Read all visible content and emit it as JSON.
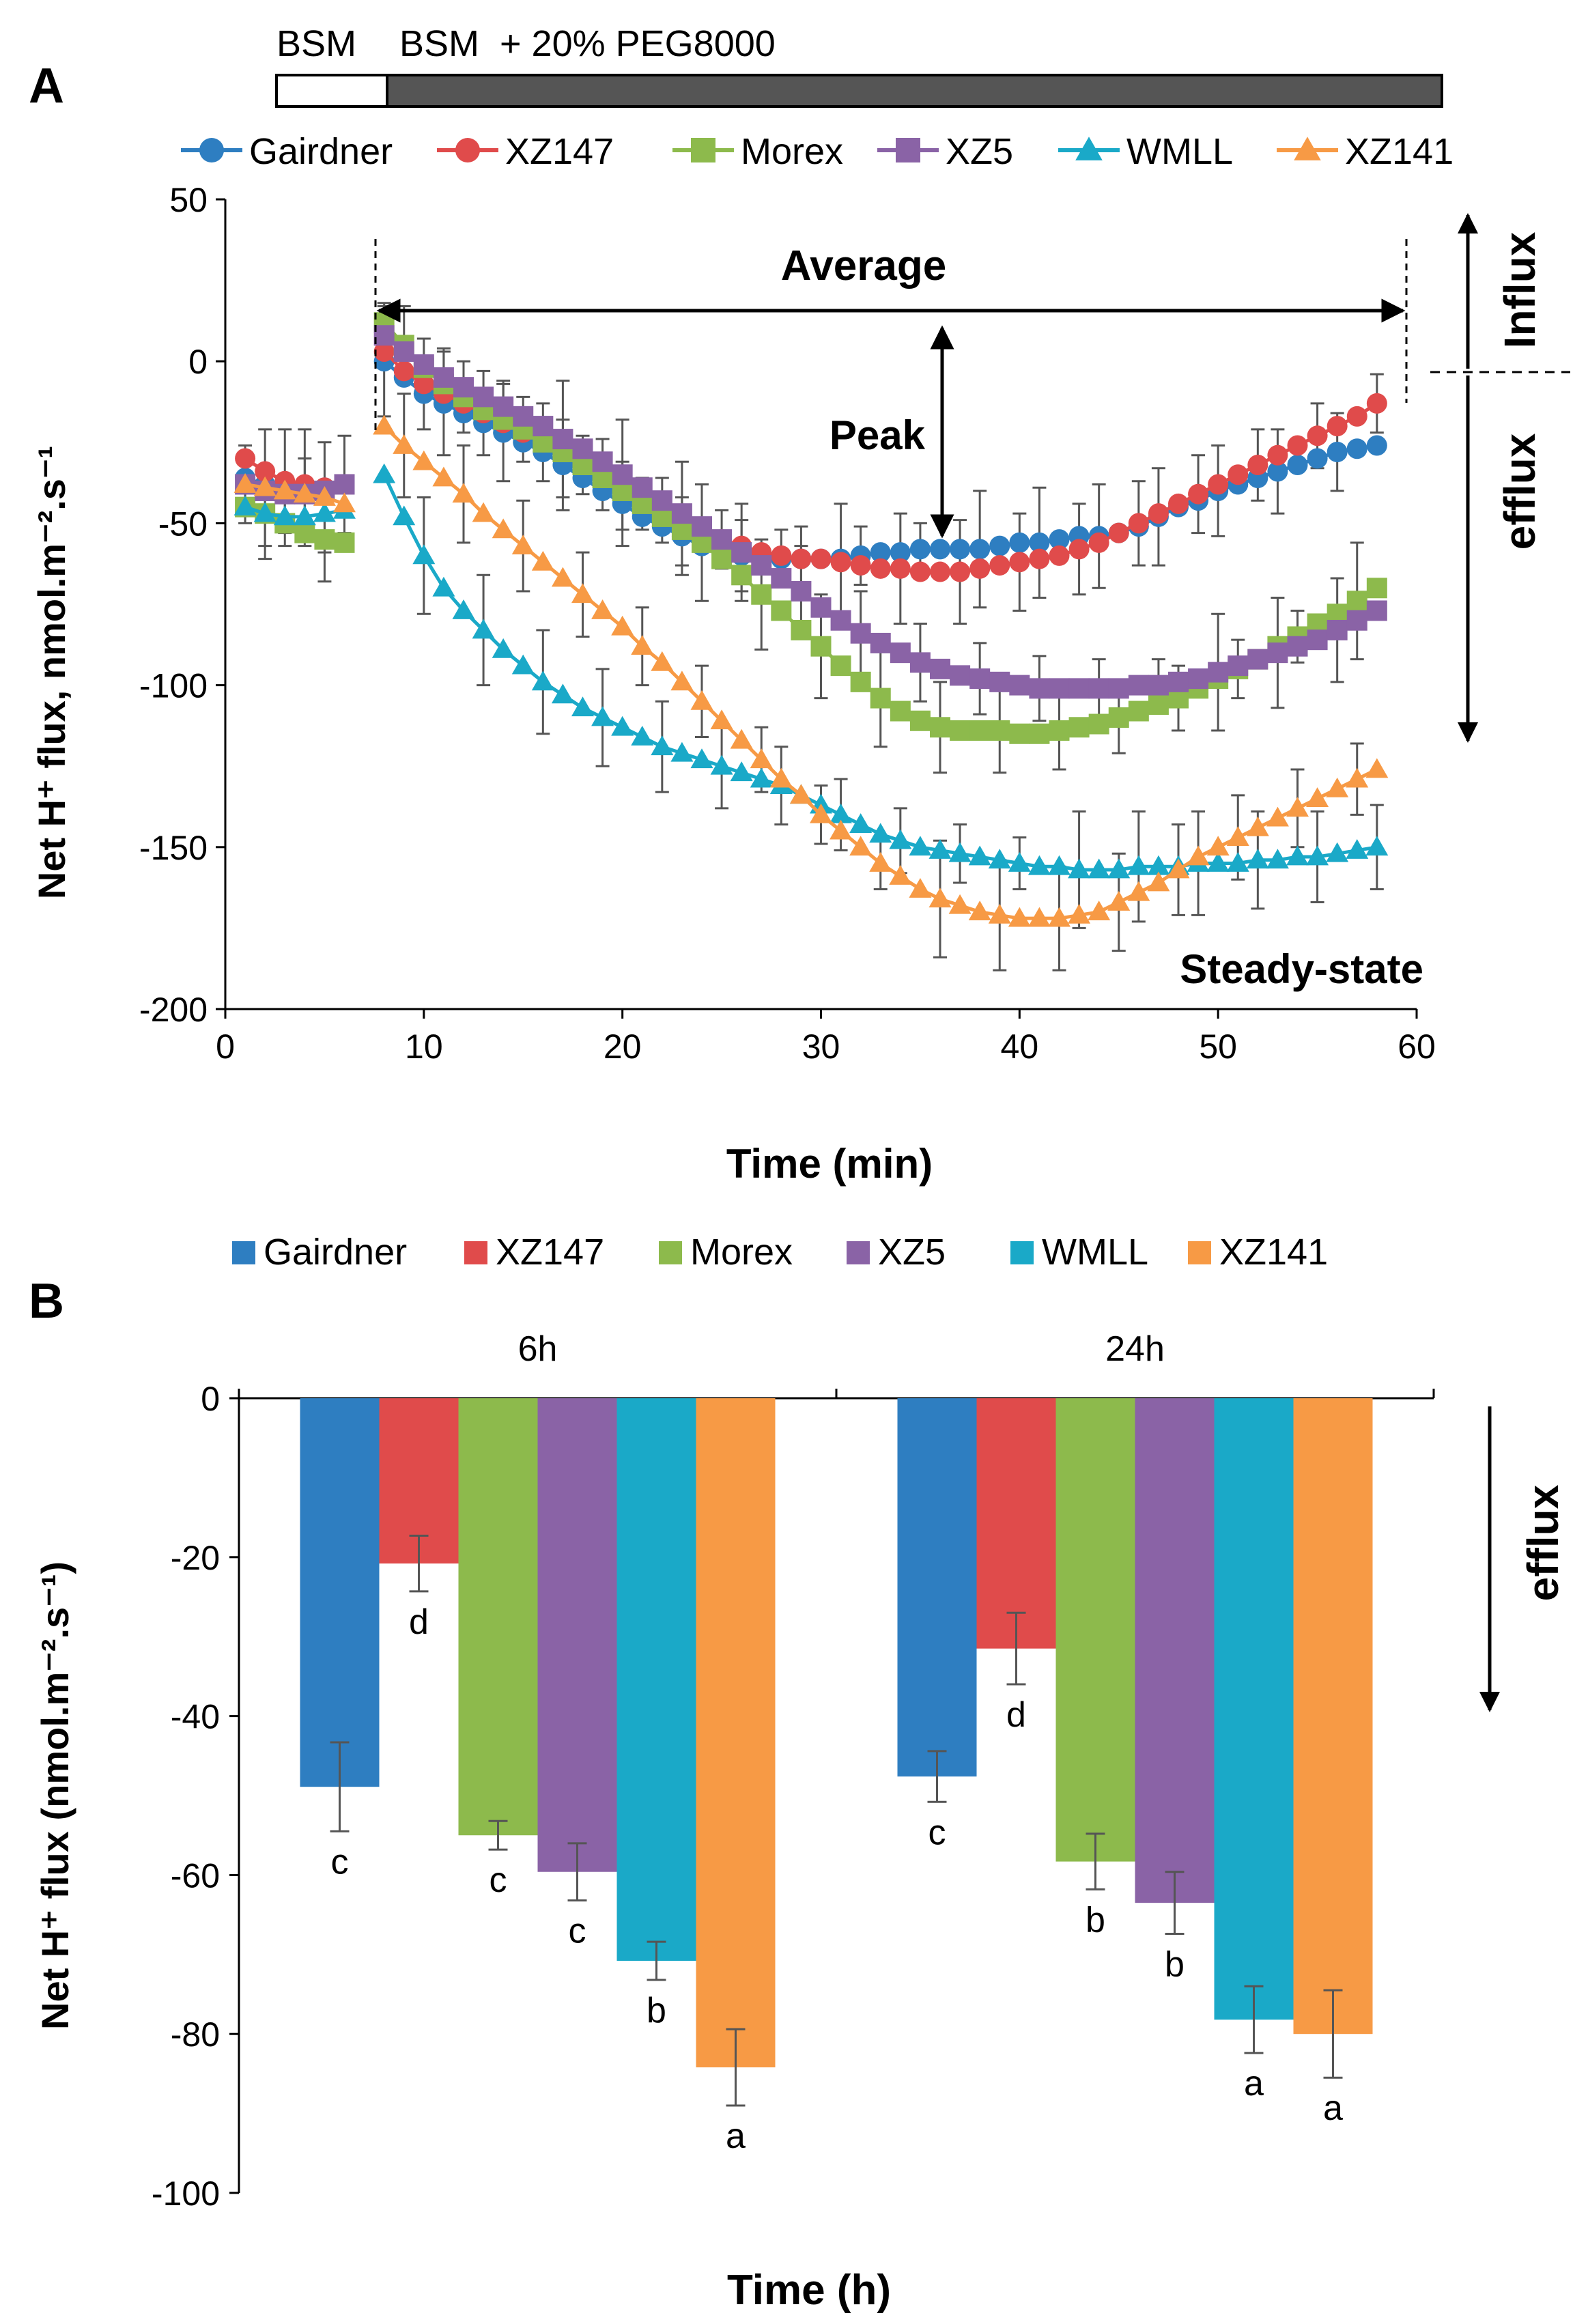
{
  "panels": {
    "a": {
      "letter": "A",
      "treatment_bar": {
        "label_before": "BSM",
        "label_after": "BSM  + 20% PEG8000"
      },
      "annotations": {
        "average": "Average",
        "peak": "Peak",
        "steady_state": "Steady-state",
        "influx": "Influx",
        "efflux": "efflux"
      }
    },
    "b": {
      "letter": "B",
      "annotations": {
        "efflux": "efflux"
      }
    }
  },
  "colors": {
    "Gairdner": "#2E7EC1",
    "XZ147": "#E04B4B",
    "Morex": "#8DBA4C",
    "XZ5": "#8A63A6",
    "WMLL": "#1AA9C8",
    "XZ141": "#F79A45"
  },
  "chart_data": [
    {
      "id": "A",
      "type": "line",
      "xlabel": "Time (min)",
      "ylabel": "Net H⁺ flux, nmol.m⁻².s⁻¹",
      "xlim": [
        0,
        60
      ],
      "ylim": [
        -200,
        50
      ],
      "xticks": [
        0,
        10,
        20,
        30,
        40,
        50,
        60
      ],
      "yticks": [
        50,
        0,
        -50,
        -100,
        -150,
        -200
      ],
      "legend": [
        "Gairdner",
        "XZ147",
        "Morex",
        "XZ5",
        "WMLL",
        "XZ141"
      ],
      "series": [
        {
          "name": "Gairdner",
          "marker": "circle",
          "x": [
            1,
            2,
            3,
            4,
            5,
            6,
            8,
            9,
            10,
            11,
            12,
            13,
            14,
            15,
            16,
            17,
            18,
            19,
            20,
            21,
            22,
            23,
            24,
            25,
            26,
            27,
            28,
            29,
            30,
            31,
            32,
            33,
            34,
            35,
            36,
            37,
            38,
            39,
            40,
            41,
            42,
            43,
            44,
            45,
            46,
            47,
            48,
            49,
            50,
            51,
            52,
            53,
            54,
            55,
            56,
            57,
            58
          ],
          "y": [
            -36,
            -38,
            -39,
            -39,
            -39,
            -38,
            0,
            -5,
            -10,
            -13,
            -16,
            -19,
            -22,
            -25,
            -28,
            -32,
            -36,
            -40,
            -44,
            -48,
            -51,
            -54,
            -57,
            -59,
            -60,
            -61,
            -61,
            -61,
            -61,
            -61,
            -60,
            -59,
            -59,
            -58,
            -58,
            -58,
            -58,
            -57,
            -56,
            -56,
            -55,
            -54,
            -54,
            -53,
            -51,
            -48,
            -45,
            -43,
            -40,
            -38,
            -36,
            -34,
            -32,
            -30,
            -28,
            -27,
            -26
          ]
        },
        {
          "name": "XZ147",
          "marker": "circle",
          "x": [
            1,
            2,
            3,
            4,
            5,
            6,
            8,
            9,
            10,
            11,
            12,
            13,
            14,
            15,
            16,
            17,
            18,
            19,
            20,
            21,
            22,
            23,
            24,
            25,
            26,
            27,
            28,
            29,
            30,
            31,
            32,
            33,
            34,
            35,
            36,
            37,
            38,
            39,
            40,
            41,
            42,
            43,
            44,
            45,
            46,
            47,
            48,
            49,
            50,
            51,
            52,
            53,
            54,
            55,
            56,
            57,
            58
          ],
          "y": [
            -30,
            -34,
            -37,
            -38,
            -39,
            -38,
            3,
            -3,
            -7,
            -10,
            -13,
            -16,
            -19,
            -22,
            -25,
            -28,
            -31,
            -35,
            -39,
            -42,
            -46,
            -49,
            -52,
            -55,
            -57,
            -59,
            -60,
            -61,
            -61,
            -62,
            -63,
            -64,
            -64,
            -65,
            -65,
            -65,
            -64,
            -63,
            -62,
            -61,
            -60,
            -58,
            -56,
            -53,
            -50,
            -47,
            -44,
            -41,
            -38,
            -35,
            -32,
            -29,
            -26,
            -23,
            -20,
            -17,
            -13
          ]
        },
        {
          "name": "Morex",
          "marker": "square",
          "x": [
            1,
            2,
            3,
            4,
            5,
            6,
            8,
            9,
            10,
            11,
            12,
            13,
            14,
            15,
            16,
            17,
            18,
            19,
            20,
            21,
            22,
            23,
            24,
            25,
            26,
            27,
            28,
            29,
            30,
            31,
            32,
            33,
            34,
            35,
            36,
            37,
            38,
            39,
            40,
            41,
            42,
            43,
            44,
            45,
            46,
            47,
            48,
            49,
            50,
            51,
            52,
            53,
            54,
            55,
            56,
            57,
            58
          ],
          "y": [
            -45,
            -47,
            -50,
            -53,
            -55,
            -56,
            12,
            5,
            -2,
            -7,
            -11,
            -15,
            -18,
            -21,
            -25,
            -28,
            -32,
            -36,
            -40,
            -44,
            -48,
            -52,
            -56,
            -61,
            -66,
            -72,
            -77,
            -83,
            -88,
            -94,
            -99,
            -104,
            -108,
            -111,
            -113,
            -114,
            -114,
            -114,
            -115,
            -115,
            -114,
            -113,
            -112,
            -110,
            -108,
            -106,
            -104,
            -101,
            -98,
            -95,
            -92,
            -88,
            -85,
            -81,
            -78,
            -74,
            -70
          ]
        },
        {
          "name": "XZ5",
          "marker": "square",
          "x": [
            1,
            2,
            3,
            4,
            5,
            6,
            8,
            9,
            10,
            11,
            12,
            13,
            14,
            15,
            16,
            17,
            18,
            19,
            20,
            21,
            22,
            23,
            24,
            25,
            26,
            27,
            28,
            29,
            30,
            31,
            32,
            33,
            34,
            35,
            36,
            37,
            38,
            39,
            40,
            41,
            42,
            43,
            44,
            45,
            46,
            47,
            48,
            49,
            50,
            51,
            52,
            53,
            54,
            55,
            56,
            57,
            58
          ],
          "y": [
            -38,
            -40,
            -41,
            -41,
            -40,
            -38,
            8,
            3,
            -1,
            -5,
            -8,
            -11,
            -14,
            -17,
            -20,
            -24,
            -27,
            -31,
            -35,
            -39,
            -43,
            -47,
            -51,
            -55,
            -59,
            -63,
            -67,
            -71,
            -76,
            -80,
            -84,
            -87,
            -90,
            -93,
            -95,
            -97,
            -98,
            -99,
            -100,
            -101,
            -101,
            -101,
            -101,
            -101,
            -100,
            -100,
            -99,
            -98,
            -96,
            -94,
            -92,
            -90,
            -88,
            -86,
            -83,
            -80,
            -77
          ]
        },
        {
          "name": "WMLL",
          "marker": "triangle",
          "x": [
            1,
            2,
            3,
            4,
            5,
            6,
            8,
            9,
            10,
            11,
            12,
            13,
            14,
            15,
            16,
            17,
            18,
            19,
            20,
            21,
            22,
            23,
            24,
            25,
            26,
            27,
            28,
            29,
            30,
            31,
            32,
            33,
            34,
            35,
            36,
            37,
            38,
            39,
            40,
            41,
            42,
            43,
            44,
            45,
            46,
            47,
            48,
            49,
            50,
            51,
            52,
            53,
            54,
            55,
            56,
            57,
            58
          ],
          "y": [
            -45,
            -47,
            -48,
            -48,
            -47,
            -46,
            -35,
            -48,
            -60,
            -70,
            -77,
            -83,
            -89,
            -94,
            -99,
            -103,
            -107,
            -110,
            -113,
            -116,
            -119,
            -121,
            -123,
            -125,
            -127,
            -129,
            -131,
            -134,
            -137,
            -140,
            -143,
            -146,
            -148,
            -150,
            -151,
            -152,
            -153,
            -154,
            -155,
            -156,
            -156,
            -157,
            -157,
            -157,
            -156,
            -156,
            -156,
            -155,
            -155,
            -155,
            -154,
            -154,
            -153,
            -153,
            -152,
            -151,
            -150
          ]
        },
        {
          "name": "XZ141",
          "marker": "triangle",
          "x": [
            1,
            2,
            3,
            4,
            5,
            6,
            8,
            9,
            10,
            11,
            12,
            13,
            14,
            15,
            16,
            17,
            18,
            19,
            20,
            21,
            22,
            23,
            24,
            25,
            26,
            27,
            28,
            29,
            30,
            31,
            32,
            33,
            34,
            35,
            36,
            37,
            38,
            39,
            40,
            41,
            42,
            43,
            44,
            45,
            46,
            47,
            48,
            49,
            50,
            51,
            52,
            53,
            54,
            55,
            56,
            57,
            58
          ],
          "y": [
            -38,
            -39,
            -40,
            -41,
            -42,
            -44,
            -20,
            -26,
            -31,
            -36,
            -41,
            -47,
            -52,
            -57,
            -62,
            -67,
            -72,
            -77,
            -82,
            -88,
            -93,
            -99,
            -105,
            -111,
            -117,
            -123,
            -129,
            -134,
            -140,
            -145,
            -150,
            -155,
            -159,
            -163,
            -166,
            -168,
            -170,
            -171,
            -172,
            -172,
            -172,
            -171,
            -170,
            -167,
            -164,
            -161,
            -157,
            -153,
            -150,
            -147,
            -144,
            -141,
            -138,
            -135,
            -132,
            -129,
            -126
          ]
        }
      ]
    },
    {
      "id": "B",
      "type": "bar",
      "xlabel": "Time (h)",
      "ylabel": "Net H⁺ flux (nmol.m⁻².s⁻¹)",
      "ylim": [
        -100,
        0
      ],
      "yticks": [
        0,
        -20,
        -40,
        -60,
        -80,
        -100
      ],
      "categories": [
        "6h",
        "24h"
      ],
      "legend": [
        "Gairdner",
        "XZ147",
        "Morex",
        "XZ5",
        "WMLL",
        "XZ141"
      ],
      "series": [
        {
          "name": "Gairdner",
          "values": [
            -48.9,
            -47.6
          ],
          "errors": [
            5.6,
            3.2
          ],
          "letters": [
            "c",
            "c"
          ]
        },
        {
          "name": "XZ147",
          "values": [
            -20.8,
            -31.5
          ],
          "errors": [
            3.5,
            4.5
          ],
          "letters": [
            "d",
            "d"
          ]
        },
        {
          "name": "Morex",
          "values": [
            -55.0,
            -58.3
          ],
          "errors": [
            1.8,
            3.5
          ],
          "letters": [
            "c",
            "b"
          ]
        },
        {
          "name": "XZ5",
          "values": [
            -59.6,
            -63.5
          ],
          "errors": [
            3.6,
            3.9
          ],
          "letters": [
            "c",
            "b"
          ]
        },
        {
          "name": "WMLL",
          "values": [
            -70.8,
            -78.2
          ],
          "errors": [
            2.4,
            4.2
          ],
          "letters": [
            "b",
            "a"
          ]
        },
        {
          "name": "XZ141",
          "values": [
            -84.2,
            -80.0
          ],
          "errors": [
            4.8,
            5.5
          ],
          "letters": [
            "a",
            "a"
          ]
        }
      ]
    }
  ]
}
